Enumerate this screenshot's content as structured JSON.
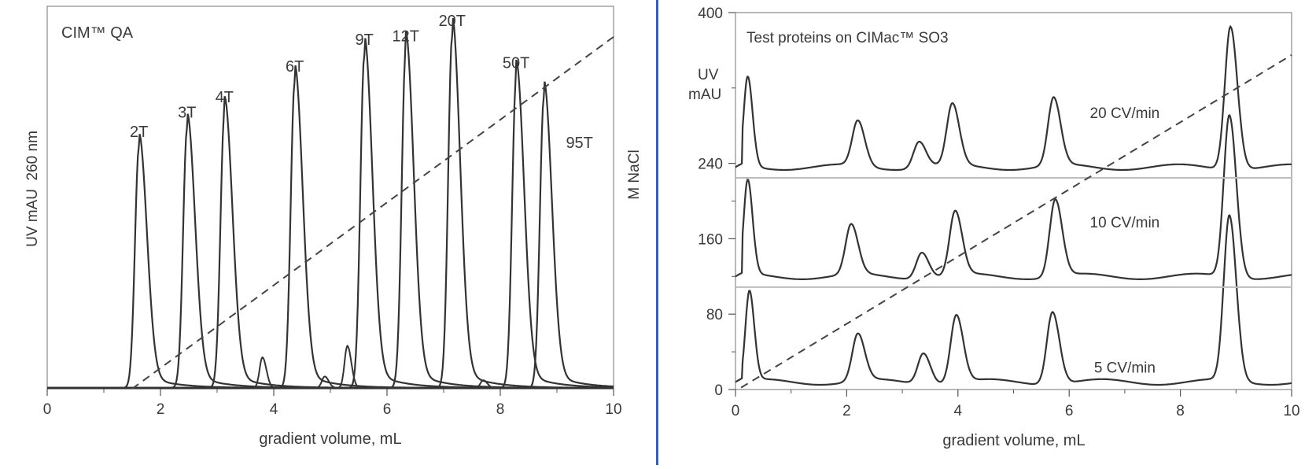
{
  "chart_data": [
    {
      "type": "line",
      "title": "CIM™ QA",
      "xlabel": "gradient volume, mL",
      "ylabel": "UV mAU  260 nm",
      "y2label": "M NaCl",
      "xlim": [
        0,
        10
      ],
      "xticks": [
        "0",
        "2",
        "4",
        "6",
        "8",
        "10"
      ],
      "grid": false,
      "peaks": [
        {
          "name": "2T",
          "x": 1.62,
          "height": 0.63
        },
        {
          "name": "3T",
          "x": 2.47,
          "height": 0.68
        },
        {
          "name": "4T",
          "x": 3.13,
          "height": 0.72
        },
        {
          "name": "6T",
          "x": 4.37,
          "height": 0.8
        },
        {
          "name": "9T",
          "x": 5.6,
          "height": 0.87
        },
        {
          "name": "12T",
          "x": 6.33,
          "height": 0.88
        },
        {
          "name": "20T",
          "x": 7.15,
          "height": 0.92
        },
        {
          "name": "50T",
          "x": 8.28,
          "height": 0.81
        },
        {
          "name": "95T",
          "x": 8.77,
          "height": 0.76
        }
      ],
      "gradient_line": {
        "x": [
          1.5,
          10
        ],
        "y": [
          0.0,
          0.92
        ]
      }
    },
    {
      "type": "line",
      "title": "Test proteins on CIMac™ SO3",
      "xlabel": "gradient volume, mL",
      "ylabel": "UV\nmAU",
      "xlim": [
        0,
        10
      ],
      "ylim": [
        0,
        400
      ],
      "xticks": [
        "0",
        "2",
        "4",
        "6",
        "8",
        "10"
      ],
      "yticks": [
        "0",
        "80",
        "160",
        "240",
        "400"
      ],
      "grid": false,
      "series": [
        {
          "name": "5 CV/min",
          "baseline": 0,
          "peaks": [
            {
              "x": 0.25,
              "h": 95
            },
            {
              "x": 2.2,
              "h": 50
            },
            {
              "x": 3.38,
              "h": 33
            },
            {
              "x": 3.97,
              "h": 72
            },
            {
              "x": 5.7,
              "h": 77
            },
            {
              "x": 8.88,
              "h": 175
            }
          ]
        },
        {
          "name": "10 CV/min",
          "baseline": 112,
          "peaks": [
            {
              "x": 0.22,
              "h": 100
            },
            {
              "x": 2.08,
              "h": 53
            },
            {
              "x": 3.35,
              "h": 28
            },
            {
              "x": 3.95,
              "h": 68
            },
            {
              "x": 5.75,
              "h": 82
            },
            {
              "x": 8.88,
              "h": 172
            }
          ]
        },
        {
          "name": "20 CV/min",
          "baseline": 228,
          "peaks": [
            {
              "x": 0.22,
              "h": 95
            },
            {
              "x": 2.2,
              "h": 48
            },
            {
              "x": 3.3,
              "h": 28
            },
            {
              "x": 3.9,
              "h": 65
            },
            {
              "x": 5.72,
              "h": 72
            },
            {
              "x": 8.9,
              "h": 152
            }
          ]
        }
      ],
      "gradient_line": {
        "x": [
          0.1,
          10
        ],
        "y": [
          2,
          355
        ]
      }
    }
  ]
}
